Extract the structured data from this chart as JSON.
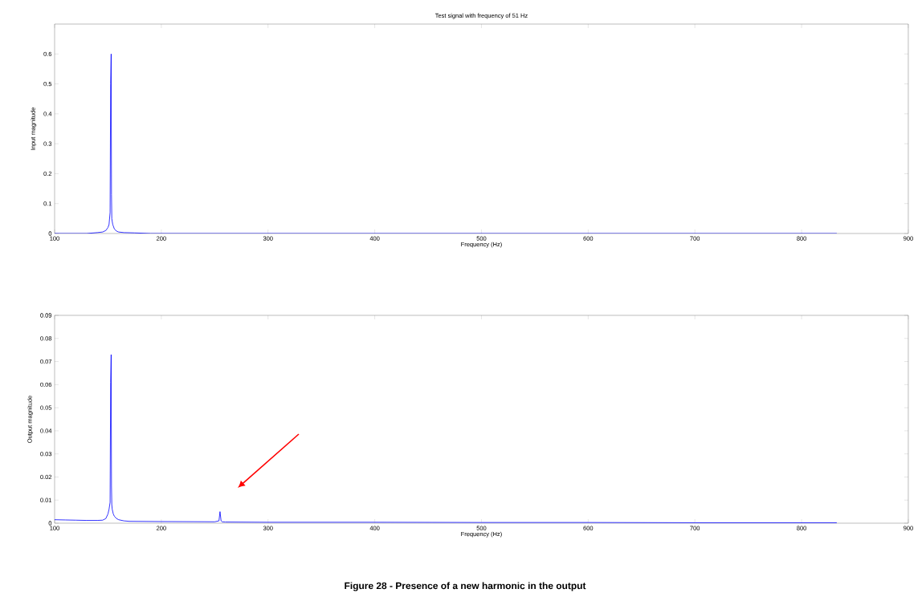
{
  "chart_data": [
    {
      "type": "line",
      "title": "Test signal with frequency of 51 Hz",
      "xlabel": "Frequency (Hz)",
      "ylabel": "Input magnitude",
      "xlim": [
        100,
        900
      ],
      "xticks": [
        100,
        200,
        300,
        400,
        500,
        600,
        700,
        800,
        900
      ],
      "ylim": [
        0,
        0.7
      ],
      "yticks": [
        0,
        0.1,
        0.2,
        0.3,
        0.4,
        0.5,
        0.6
      ],
      "marker": "none",
      "line_style": "solid",
      "grid": false,
      "series": [
        {
          "color": "#0000ff",
          "x": [
            100,
            130,
            140,
            145,
            148,
            150,
            151,
            152,
            152.5,
            153,
            153.3,
            153.6,
            154,
            154.5,
            155,
            156,
            158,
            160,
            165,
            175,
            190,
            200,
            833
          ],
          "values": [
            0,
            0,
            0.003,
            0.005,
            0.01,
            0.02,
            0.03,
            0.07,
            0.5,
            0.6,
            0.13,
            0.05,
            0.04,
            0.03,
            0.025,
            0.015,
            0.008,
            0.005,
            0.003,
            0.002,
            0,
            0,
            0
          ]
        }
      ]
    },
    {
      "type": "line",
      "xlabel": "Frequency (Hz)",
      "ylabel": "Output magnitude",
      "xlim": [
        100,
        900
      ],
      "xticks": [
        100,
        200,
        300,
        400,
        500,
        600,
        700,
        800,
        900
      ],
      "ylim": [
        0,
        0.09
      ],
      "yticks": [
        0,
        0.01,
        0.02,
        0.03,
        0.04,
        0.05,
        0.06,
        0.07,
        0.08,
        0.09
      ],
      "marker": "none",
      "line_style": "solid",
      "grid": false,
      "annotations": [
        "Figure 28 - Presence of a new harmonic in the output"
      ],
      "series": [
        {
          "color": "#0000ff",
          "x": [
            100,
            110,
            120,
            130,
            140,
            145,
            148,
            150,
            151,
            152,
            152.5,
            153,
            153.3,
            153.6,
            154,
            155,
            156,
            158,
            160,
            165,
            170,
            200,
            250,
            254,
            255,
            256,
            257,
            260,
            300,
            400,
            500,
            600,
            700,
            833
          ],
          "values": [
            0.0015,
            0.0014,
            0.0013,
            0.0012,
            0.0012,
            0.0013,
            0.002,
            0.004,
            0.006,
            0.009,
            0.061,
            0.073,
            0.016,
            0.008,
            0.006,
            0.004,
            0.003,
            0.002,
            0.0015,
            0.001,
            0.0008,
            0.0007,
            0.0006,
            0.001,
            0.005,
            0.001,
            0.0006,
            0.0005,
            0.0004,
            0.0004,
            0.0003,
            0.0003,
            0.0002,
            0.0002
          ]
        }
      ]
    }
  ]
}
